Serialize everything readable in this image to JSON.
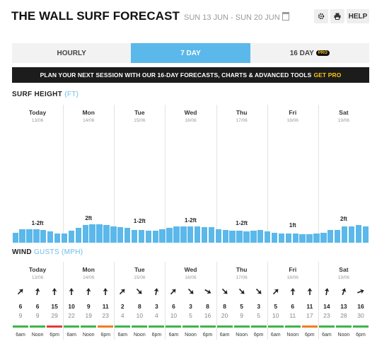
{
  "header": {
    "title": "THE WALL SURF FORECAST",
    "date_range": "SUN 13 JUN - SUN 20 JUN",
    "help_label": "HELP"
  },
  "tabs": [
    {
      "label": "HOURLY",
      "active": false
    },
    {
      "label": "7 DAY",
      "active": true
    },
    {
      "label": "16 DAY",
      "active": false,
      "badge": "PRO"
    }
  ],
  "banner": {
    "text": "PLAN YOUR NEXT SESSION WITH OUR 16-DAY FORECASTS, CHARTS & ADVANCED TOOLS",
    "cta": "GET PRO"
  },
  "surf": {
    "label": "SURF HEIGHT",
    "unit": "(FT)"
  },
  "wind": {
    "label": "WIND",
    "unit": "GUSTS (MPH)"
  },
  "days": [
    {
      "day": "Today",
      "date": "13/06",
      "wave": "1-2ft"
    },
    {
      "day": "Mon",
      "date": "14/06",
      "wave": "2ft"
    },
    {
      "day": "Tue",
      "date": "15/06",
      "wave": "1-2ft"
    },
    {
      "day": "Wed",
      "date": "16/06",
      "wave": "1-2ft"
    },
    {
      "day": "Thu",
      "date": "17/06",
      "wave": "1-2ft"
    },
    {
      "day": "Fri",
      "date": "18/06",
      "wave": "1ft"
    },
    {
      "day": "Sat",
      "date": "19/06",
      "wave": "2ft"
    }
  ],
  "wave_heights_ft": [
    1.1,
    1.5,
    1.5,
    1.5,
    1.4,
    1.2,
    1.0,
    1.0,
    1.3,
    1.6,
    1.9,
    2.0,
    2.0,
    1.9,
    1.8,
    1.7,
    1.6,
    1.4,
    1.4,
    1.3,
    1.3,
    1.5,
    1.6,
    1.8,
    1.8,
    1.8,
    1.8,
    1.7,
    1.7,
    1.5,
    1.4,
    1.3,
    1.3,
    1.2,
    1.3,
    1.4,
    1.2,
    1.1,
    1.0,
    1.0,
    1.0,
    0.9,
    0.9,
    1.0,
    1.1,
    1.4,
    1.4,
    1.8,
    1.8,
    1.9,
    1.8
  ],
  "time_labels": [
    "6am",
    "Noon",
    "6pm"
  ],
  "wind_rows": [
    {
      "speed": 6,
      "gust": 9,
      "rating": "green",
      "dir": 225
    },
    {
      "speed": 6,
      "gust": 9,
      "rating": "green",
      "dir": 190
    },
    {
      "speed": 15,
      "gust": 29,
      "rating": "red",
      "dir": 180
    },
    {
      "speed": 10,
      "gust": 22,
      "rating": "green",
      "dir": 180
    },
    {
      "speed": 9,
      "gust": 19,
      "rating": "green",
      "dir": 185
    },
    {
      "speed": 11,
      "gust": 23,
      "rating": "orange",
      "dir": 180
    },
    {
      "speed": 2,
      "gust": 4,
      "rating": "green",
      "dir": 225
    },
    {
      "speed": 8,
      "gust": 10,
      "rating": "green",
      "dir": 315
    },
    {
      "speed": 3,
      "gust": 4,
      "rating": "green",
      "dir": 190
    },
    {
      "speed": 6,
      "gust": 10,
      "rating": "green",
      "dir": 225
    },
    {
      "speed": 3,
      "gust": 5,
      "rating": "green",
      "dir": 315
    },
    {
      "speed": 8,
      "gust": 16,
      "rating": "green",
      "dir": 300
    },
    {
      "speed": 8,
      "gust": 20,
      "rating": "green",
      "dir": 315
    },
    {
      "speed": 5,
      "gust": 9,
      "rating": "green",
      "dir": 315
    },
    {
      "speed": 3,
      "gust": 5,
      "rating": "green",
      "dir": 315
    },
    {
      "speed": 5,
      "gust": 10,
      "rating": "green",
      "dir": 225
    },
    {
      "speed": 6,
      "gust": 11,
      "rating": "green",
      "dir": 180
    },
    {
      "speed": 11,
      "gust": 17,
      "rating": "orange",
      "dir": 180
    },
    {
      "speed": 14,
      "gust": 23,
      "rating": "green",
      "dir": 190
    },
    {
      "speed": 13,
      "gust": 28,
      "rating": "green",
      "dir": 200
    },
    {
      "speed": 16,
      "gust": 30,
      "rating": "green",
      "dir": 250
    }
  ],
  "colors": {
    "accent": "#5bb8ea",
    "green": "#3cb44b",
    "orange": "#f07d1e",
    "red": "#e53935",
    "pro_yellow": "#f5c518"
  }
}
